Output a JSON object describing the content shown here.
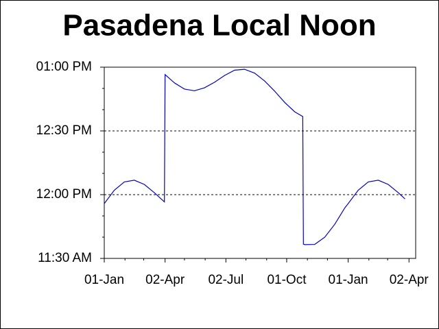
{
  "chart_data": {
    "type": "line",
    "title": "Pasadena Local Noon",
    "x": [
      0,
      15,
      30,
      45,
      60,
      75,
      90,
      91,
      105,
      120,
      135,
      150,
      165,
      180,
      195,
      210,
      225,
      240,
      255,
      270,
      285,
      297,
      298,
      300,
      315,
      330,
      345,
      360,
      365,
      380,
      395,
      410,
      425,
      440,
      450
    ],
    "series": [
      {
        "color": "#0000c8",
        "values": [
          715.8,
          722.1,
          726.0,
          726.8,
          724.8,
          720.9,
          716.6,
          776.5,
          772.6,
          769.7,
          768.9,
          770.3,
          772.9,
          776.1,
          778.6,
          779.0,
          777.2,
          773.5,
          768.7,
          763.4,
          759.0,
          756.8,
          696.7,
          696.5,
          696.6,
          700.0,
          706.1,
          713.8,
          715.8,
          722.1,
          726.0,
          726.8,
          724.8,
          720.9,
          718.0
        ]
      }
    ],
    "xlim": [
      0,
      466
    ],
    "xticks": [
      {
        "value": 0,
        "label": "01-Jan"
      },
      {
        "value": 91,
        "label": "02-Apr"
      },
      {
        "value": 182,
        "label": "02-Jul"
      },
      {
        "value": 273,
        "label": "01-Oct"
      },
      {
        "value": 365,
        "label": "01-Jan"
      },
      {
        "value": 456,
        "label": "02-Apr"
      }
    ],
    "xminorticks": [
      31,
      59,
      120,
      151,
      212,
      243,
      304,
      334,
      396,
      424
    ],
    "ylim": [
      690,
      780
    ],
    "yticks": [
      {
        "value": 690,
        "label": "11:30 AM"
      },
      {
        "value": 720,
        "label": "12:00 PM"
      },
      {
        "value": 750,
        "label": "12:30 PM"
      },
      {
        "value": 780,
        "label": "01:00 PM"
      }
    ],
    "yminorticks": [
      700,
      710,
      730,
      740,
      760,
      770
    ],
    "grid": true
  }
}
